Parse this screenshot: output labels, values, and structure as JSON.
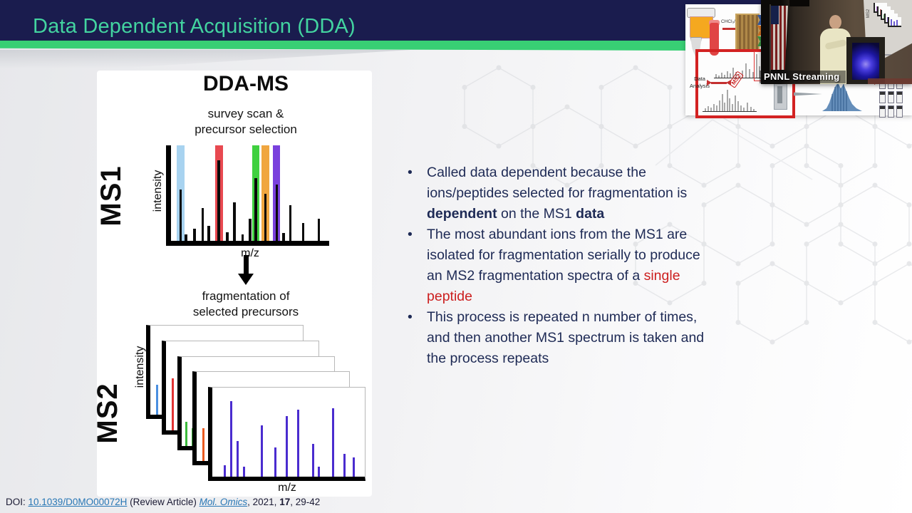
{
  "header": {
    "title": "Data Dependent Acquisition (DDA)"
  },
  "colors": {
    "title_bar": "#1a1c4e",
    "title_text": "#43d4a0",
    "accent_green": "#38cf74",
    "body_text": "#1e2a55",
    "highlight_red": "#cc1f1f",
    "link_blue": "#2877b5",
    "ms2_peak_purple": "#4a2ccf"
  },
  "figure": {
    "title": "DDA-MS",
    "caption_top": "survey scan &\nprecursor selection",
    "caption_middle": "fragmentation of\nselected precursors",
    "ms1": {
      "label": "MS1",
      "ylabel": "intensity",
      "xlabel": "m/z",
      "bands": [
        {
          "x": 0.062,
          "w": 11,
          "color": "#a8d3f0"
        },
        {
          "x": 0.303,
          "w": 11,
          "color": "#e84950"
        },
        {
          "x": 0.537,
          "w": 10,
          "color": "#3fd03f"
        },
        {
          "x": 0.595,
          "w": 11,
          "color": "#f0a640"
        },
        {
          "x": 0.667,
          "w": 10,
          "color": "#7940dd"
        }
      ],
      "peaks": [
        {
          "x": 0.06,
          "h": 0.54
        },
        {
          "x": 0.095,
          "h": 0.07
        },
        {
          "x": 0.148,
          "h": 0.13
        },
        {
          "x": 0.2,
          "h": 0.34
        },
        {
          "x": 0.238,
          "h": 0.16
        },
        {
          "x": 0.302,
          "h": 0.84
        },
        {
          "x": 0.356,
          "h": 0.09
        },
        {
          "x": 0.4,
          "h": 0.4
        },
        {
          "x": 0.453,
          "h": 0.07
        },
        {
          "x": 0.5,
          "h": 0.23
        },
        {
          "x": 0.537,
          "h": 0.66
        },
        {
          "x": 0.596,
          "h": 0.49
        },
        {
          "x": 0.668,
          "h": 0.59
        },
        {
          "x": 0.712,
          "h": 0.08
        },
        {
          "x": 0.755,
          "h": 0.37
        },
        {
          "x": 0.835,
          "h": 0.19
        },
        {
          "x": 0.935,
          "h": 0.23
        }
      ]
    },
    "ms2": {
      "label": "MS2",
      "ylabel": "intensity",
      "xlabel": "m/z",
      "panel_count": 5,
      "panel_offset": 21.75,
      "panel_peaks": [
        [
          {
            "x": 0.045,
            "h": 0.34,
            "color": "#4a8fe0"
          }
        ],
        [
          {
            "x": 0.045,
            "h": 0.58,
            "color": "#e03232"
          }
        ],
        [
          {
            "x": 0.035,
            "h": 0.27,
            "color": "#3bba3b"
          },
          {
            "x": 0.075,
            "h": 0.2,
            "color": "#3bba3b"
          }
        ],
        [
          {
            "x": 0.045,
            "h": 0.37,
            "color": "#ea5a20"
          }
        ],
        [
          {
            "x": 0.08,
            "h": 0.13
          },
          {
            "x": 0.125,
            "h": 0.85
          },
          {
            "x": 0.167,
            "h": 0.4
          },
          {
            "x": 0.207,
            "h": 0.11
          },
          {
            "x": 0.326,
            "h": 0.58
          },
          {
            "x": 0.415,
            "h": 0.33
          },
          {
            "x": 0.489,
            "h": 0.68
          },
          {
            "x": 0.563,
            "h": 0.75
          },
          {
            "x": 0.659,
            "h": 0.37
          },
          {
            "x": 0.7,
            "h": 0.11
          },
          {
            "x": 0.79,
            "h": 0.77
          },
          {
            "x": 0.867,
            "h": 0.26
          },
          {
            "x": 0.926,
            "h": 0.22
          }
        ]
      ]
    }
  },
  "bullets": [
    {
      "segments": [
        {
          "t": "Called data dependent because the\nions/peptides selected for fragmentation is\n",
          "s": "n"
        },
        {
          "t": "dependent",
          "s": "b"
        },
        {
          "t": " on the MS1 ",
          "s": "n"
        },
        {
          "t": "data",
          "s": "b"
        }
      ]
    },
    {
      "segments": [
        {
          "t": "The most abundant ions from the MS1 are\nisolated for fragmentation serially to produce\nan MS2 fragmentation spectra of a ",
          "s": "n"
        },
        {
          "t": "single\npeptide",
          "s": "r"
        }
      ]
    },
    {
      "segments": [
        {
          "t": "This process is repeated n number of times,\nand then another MS1 spectrum is taken and\nthe process repeats",
          "s": "n"
        }
      ]
    }
  ],
  "footer": {
    "prefix": "DOI: ",
    "doi": "10.1039/D0MO00072H",
    "middle": " (Review Article) ",
    "journal": "Mol. Omics",
    "sep1": ", 2021, ",
    "volume": "17",
    "suffix": ", 29-42"
  },
  "stream": {
    "watermark": "PNNL Streaming",
    "workflow_slide": {
      "solvent_label": "CHCl₃/MeOH",
      "analysis_label": "Data\nAnalysis",
      "ms2_tag": "MS2"
    },
    "projection_screen_label": "MS2"
  }
}
